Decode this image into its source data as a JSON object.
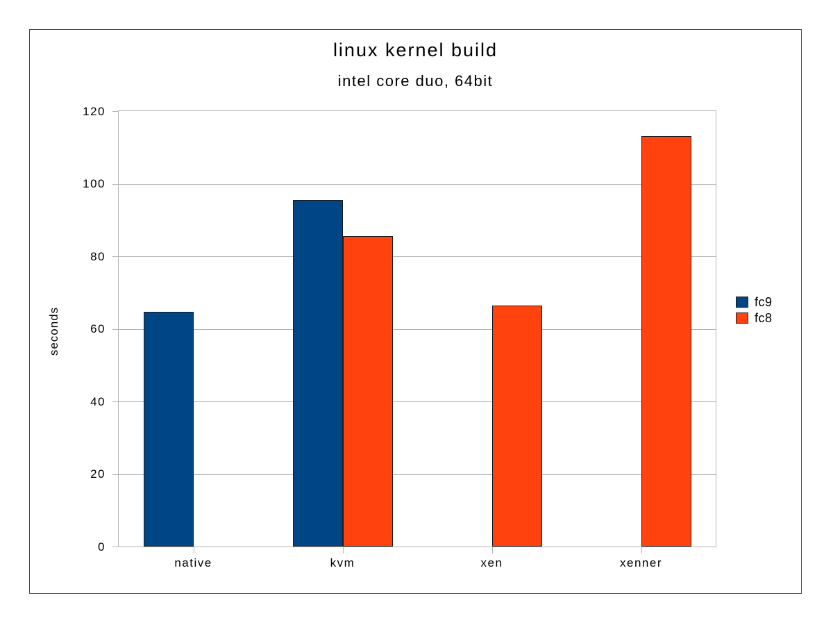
{
  "window": {
    "background": "#ffffff",
    "frame_color": "#474747"
  },
  "chart_data": {
    "type": "bar",
    "title": "linux kernel build",
    "subtitle": "intel core duo, 64bit",
    "xlabel": "",
    "ylabel": "seconds",
    "categories": [
      "native",
      "kvm",
      "xen",
      "xenner"
    ],
    "series": [
      {
        "name": "fc9",
        "color": "#004586",
        "values": [
          64.7,
          95.5,
          null,
          null
        ]
      },
      {
        "name": "fc8",
        "color": "#FF420E",
        "values": [
          null,
          85.5,
          66.4,
          113.2
        ]
      }
    ],
    "ylim": [
      0,
      120
    ],
    "ytick_step": 20,
    "ytick_labels": [
      "0",
      "20",
      "40",
      "60",
      "80",
      "100",
      "120"
    ],
    "grid": "horizontal-only",
    "grid_color": "#b3b3b3",
    "axis_color": "#b3b3b3",
    "bar_outline_color": "#1a1a1a",
    "text_color": "#000000",
    "legend_position": "right"
  }
}
